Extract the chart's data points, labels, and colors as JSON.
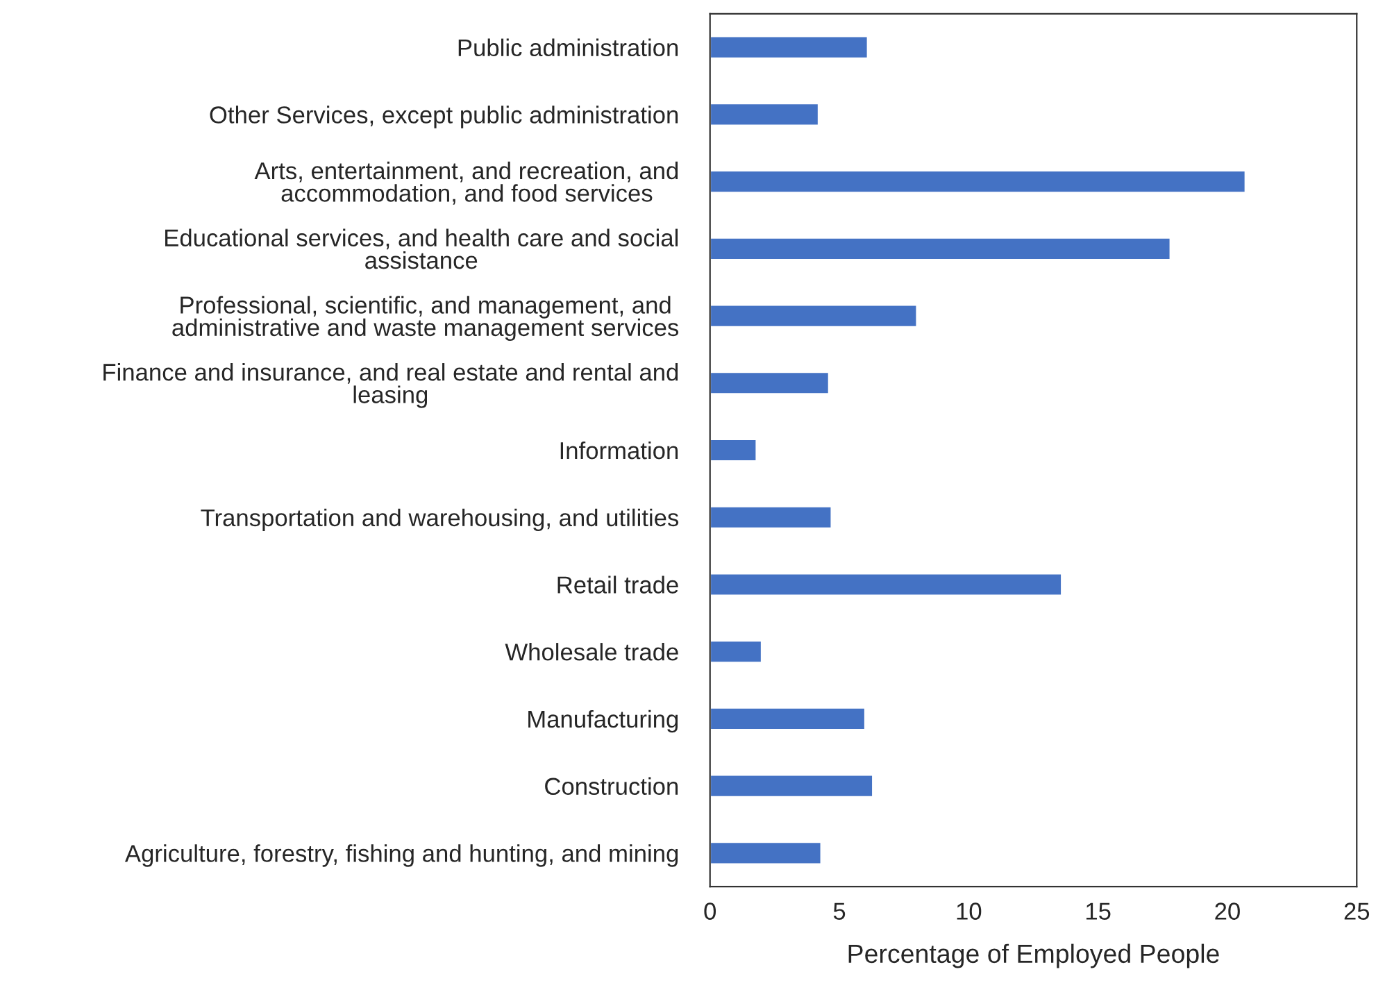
{
  "chart_data": {
    "type": "bar",
    "orientation": "horizontal",
    "xlabel": "Percentage of Employed People",
    "categories": [
      "Public administration",
      "Other Services, except public administration",
      "Arts, entertainment, and recreation, and\naccommodation, and food services",
      "Educational services, and health care and social\nassistance",
      "Professional, scientific, and management, and\nadministrative and waste management services",
      "Finance and insurance, and real estate and rental and\nleasing",
      "Information",
      "Transportation and warehousing, and utilities",
      "Retail trade",
      "Wholesale trade",
      "Manufacturing",
      "Construction",
      "Agriculture, forestry, fishing and hunting, and mining"
    ],
    "values": [
      6.1,
      4.2,
      20.7,
      17.8,
      8.0,
      4.6,
      1.8,
      4.7,
      13.6,
      2.0,
      6.0,
      6.3,
      4.3
    ],
    "color": "#4472c4",
    "xlim": [
      0,
      25
    ],
    "xticks": [
      0,
      5,
      10,
      15,
      20,
      25
    ],
    "grid": false,
    "legend": false
  }
}
